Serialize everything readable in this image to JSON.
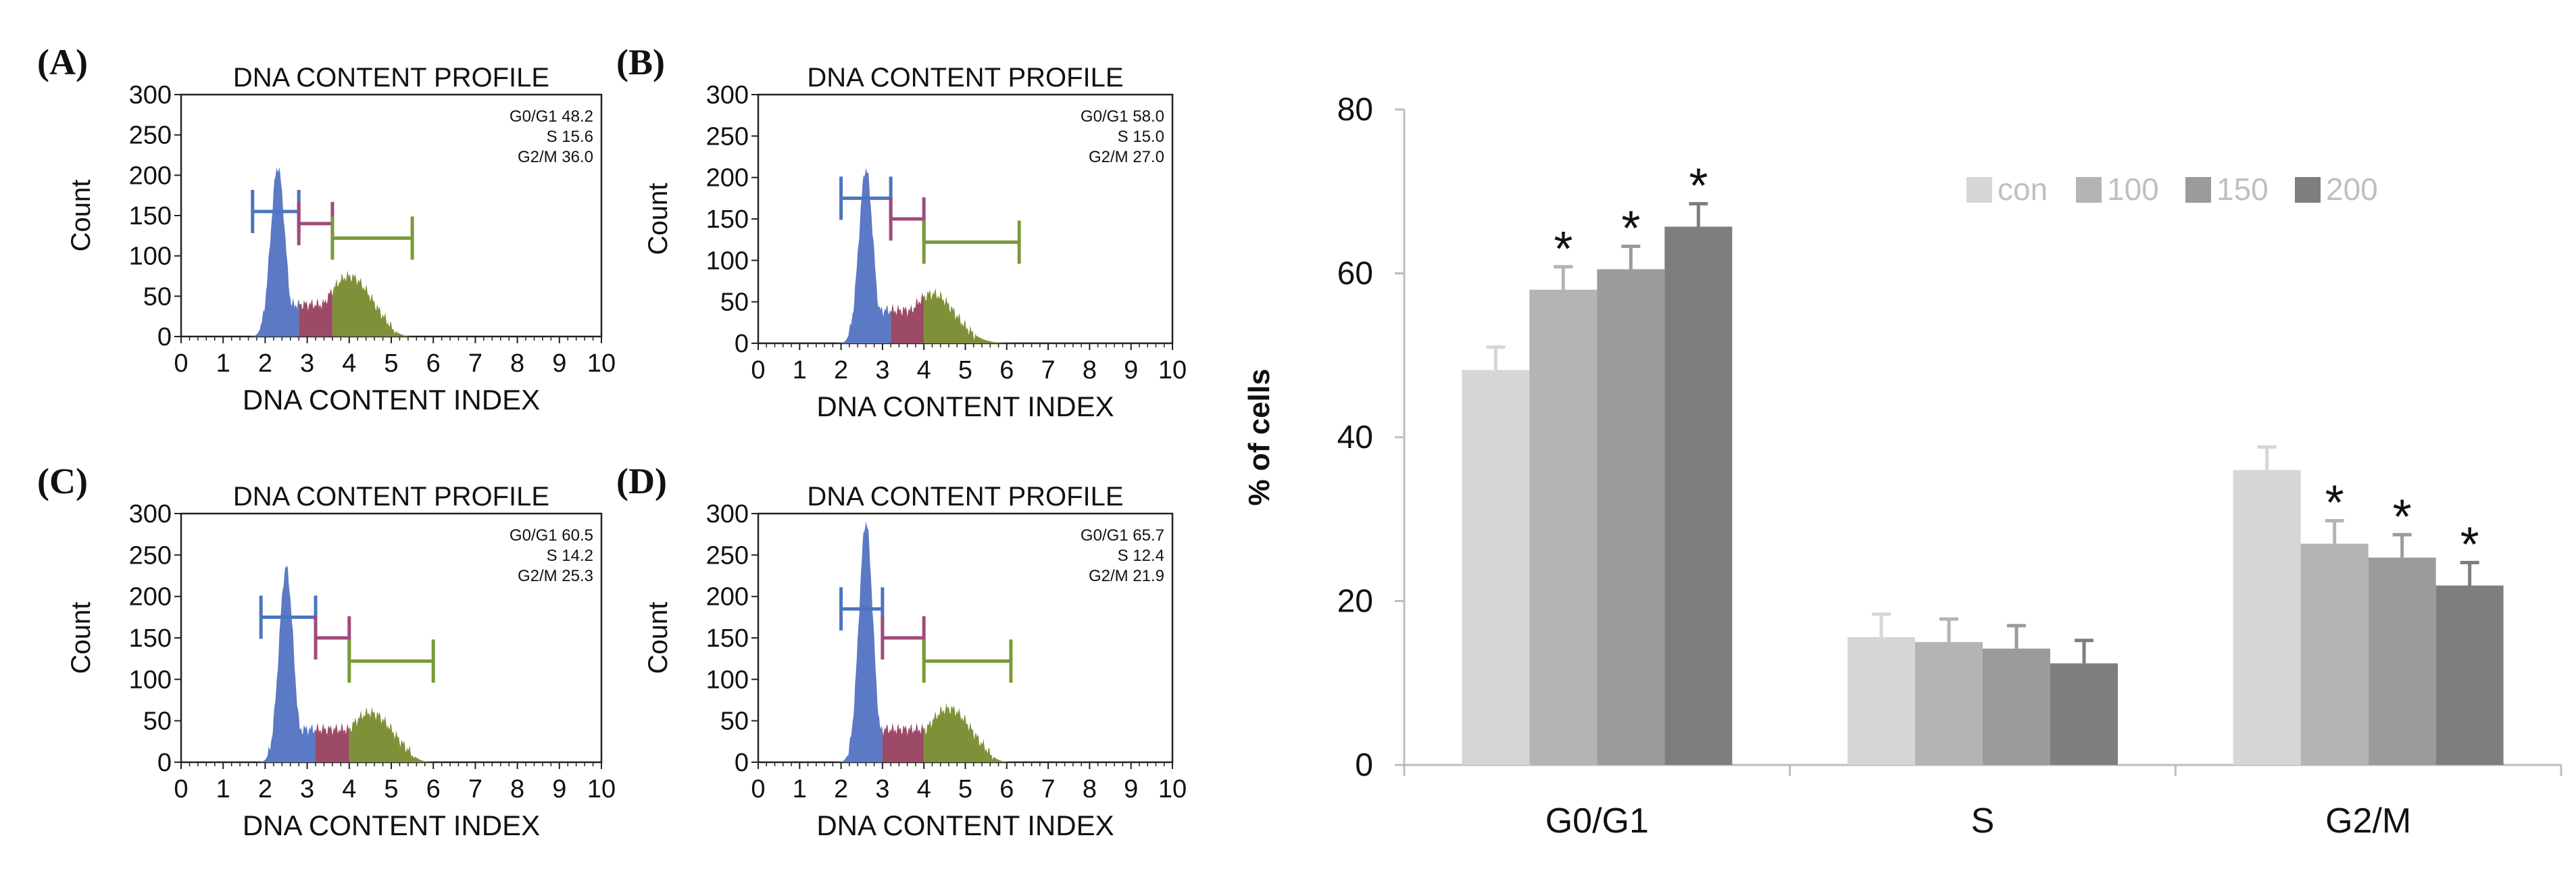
{
  "panels": [
    {
      "letter": "(A)",
      "title": "DNA CONTENT PROFILE",
      "xlabel": "DNA CONTENT INDEX",
      "ylabel": "Count",
      "yticks": [
        "300",
        "250",
        "200",
        "150",
        "100",
        "50",
        "0"
      ],
      "xticks": [
        "0",
        "1",
        "2",
        "3",
        "4",
        "5",
        "6",
        "7",
        "8",
        "9",
        "10"
      ],
      "stats": [
        "G0/G1 48.2",
        "S 15.6",
        "G2/M 36.0"
      ],
      "g1_peak": 2.3,
      "g1_height": 210,
      "g2_peak": 4.0,
      "g2_height": 75,
      "markers": {
        "g1": [
          1.7,
          2.8,
          155
        ],
        "s": [
          2.8,
          3.6,
          140
        ],
        "g2": [
          3.6,
          5.5,
          122
        ]
      }
    },
    {
      "letter": "(B)",
      "title": "DNA CONTENT PROFILE",
      "xlabel": "DNA CONTENT INDEX",
      "ylabel": "Count",
      "yticks": [
        "300",
        "250",
        "200",
        "150",
        "100",
        "50",
        "0"
      ],
      "xticks": [
        "0",
        "1",
        "2",
        "3",
        "4",
        "5",
        "6",
        "7",
        "8",
        "9",
        "10"
      ],
      "stats": [
        "G0/G1 58.0",
        "S 15.0",
        "G2/M 27.0"
      ],
      "g1_peak": 2.6,
      "g1_height": 210,
      "g2_peak": 4.2,
      "g2_height": 60,
      "markers": {
        "g1": [
          2.0,
          3.2,
          175
        ],
        "s": [
          3.2,
          4.0,
          150
        ],
        "g2": [
          4.0,
          6.3,
          122
        ]
      }
    },
    {
      "letter": "(C)",
      "title": "DNA CONTENT PROFILE",
      "xlabel": "DNA CONTENT INDEX",
      "ylabel": "Count",
      "yticks": [
        "300",
        "250",
        "200",
        "150",
        "100",
        "50",
        "0"
      ],
      "xticks": [
        "0",
        "1",
        "2",
        "3",
        "4",
        "5",
        "6",
        "7",
        "8",
        "9",
        "10"
      ],
      "stats": [
        "G0/G1 60.5",
        "S 14.2",
        "G2/M 25.3"
      ],
      "g1_peak": 2.5,
      "g1_height": 235,
      "g2_peak": 4.5,
      "g2_height": 60,
      "markers": {
        "g1": [
          1.9,
          3.2,
          175
        ],
        "s": [
          3.2,
          4.0,
          150
        ],
        "g2": [
          4.0,
          6.0,
          122
        ]
      }
    },
    {
      "letter": "(D)",
      "title": "DNA CONTENT PROFILE",
      "xlabel": "DNA CONTENT INDEX",
      "ylabel": "Count",
      "yticks": [
        "300",
        "250",
        "200",
        "150",
        "100",
        "50",
        "0"
      ],
      "xticks": [
        "0",
        "1",
        "2",
        "3",
        "4",
        "5",
        "6",
        "7",
        "8",
        "9",
        "10"
      ],
      "stats": [
        "G0/G1 65.7",
        "S 12.4",
        "G2/M 21.9"
      ],
      "g1_peak": 2.6,
      "g1_height": 290,
      "g2_peak": 4.6,
      "g2_height": 65,
      "markers": {
        "g1": [
          2.0,
          3.0,
          185
        ],
        "s": [
          3.0,
          4.0,
          150
        ],
        "g2": [
          4.0,
          6.1,
          122
        ]
      }
    }
  ],
  "chart_data": {
    "type": "bar",
    "title": "",
    "xlabel": "",
    "ylabel": "% of cells",
    "ylim": [
      0,
      80
    ],
    "yticks": [
      0,
      20,
      40,
      60,
      80
    ],
    "grid": false,
    "legend_position": "top-right",
    "categories": [
      "G0/G1",
      "S",
      "G2/M"
    ],
    "series": [
      {
        "name": "con",
        "color": "#d6d6d6",
        "values": [
          48.2,
          15.6,
          36.0
        ],
        "errors": [
          2.8,
          2.8,
          2.8
        ],
        "significant": [
          false,
          false,
          false
        ]
      },
      {
        "name": "100",
        "color": "#b4b4b4",
        "values": [
          58.0,
          15.0,
          27.0
        ],
        "errors": [
          2.8,
          2.8,
          2.8
        ],
        "significant": [
          true,
          false,
          true
        ]
      },
      {
        "name": "150",
        "color": "#9b9b9b",
        "values": [
          60.5,
          14.2,
          25.3
        ],
        "errors": [
          2.8,
          2.8,
          2.8
        ],
        "significant": [
          true,
          false,
          true
        ]
      },
      {
        "name": "200",
        "color": "#7e7e7e",
        "values": [
          65.7,
          12.4,
          21.9
        ],
        "errors": [
          2.8,
          2.8,
          2.8
        ],
        "significant": [
          true,
          false,
          true
        ]
      }
    ],
    "significance_marker": "*"
  },
  "colors": {
    "g1": "#5b79c4",
    "s": "#9c4a67",
    "g2": "#7f9138",
    "m_g1": "#4a75c0",
    "m_s": "#a04a7a",
    "m_g2": "#7a9a38"
  }
}
